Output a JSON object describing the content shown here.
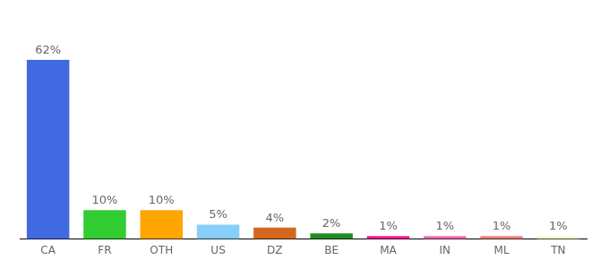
{
  "chart_data": {
    "type": "bar",
    "categories": [
      "CA",
      "FR",
      "OTH",
      "US",
      "DZ",
      "BE",
      "MA",
      "IN",
      "ML",
      "TN"
    ],
    "values": [
      62,
      10,
      10,
      5,
      4,
      2,
      1,
      1,
      1,
      1
    ],
    "value_labels": [
      "62%",
      "10%",
      "10%",
      "5%",
      "4%",
      "2%",
      "1%",
      "1%",
      "1%",
      "1%"
    ],
    "colors": [
      "#4169e1",
      "#32cd32",
      "#ffa500",
      "#87cefa",
      "#d2691e",
      "#228b22",
      "#ff1493",
      "#ff69b4",
      "#f08080",
      "#fafad2"
    ],
    "data_labels": true,
    "grid": false,
    "tick_labels": "x"
  }
}
